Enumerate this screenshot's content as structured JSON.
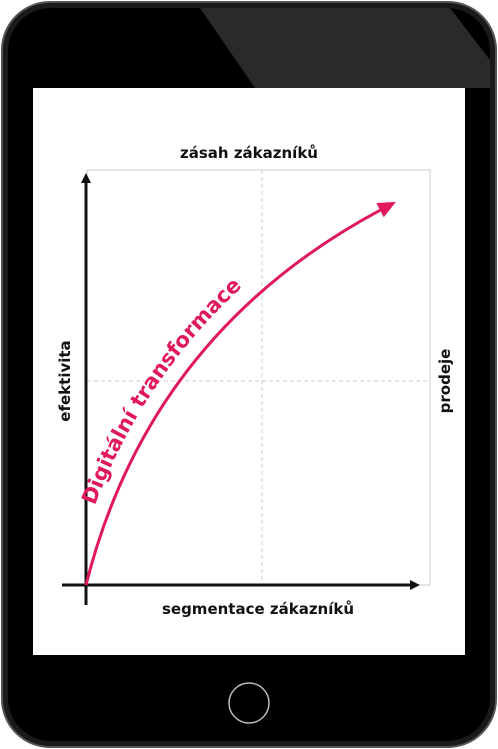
{
  "diagram": {
    "top_label": "zásah zákazníků",
    "bottom_label": "segmentace zákazníků",
    "left_label": "efektivita",
    "right_label": "prodeje",
    "curve_label": "Digitální transformace"
  }
}
